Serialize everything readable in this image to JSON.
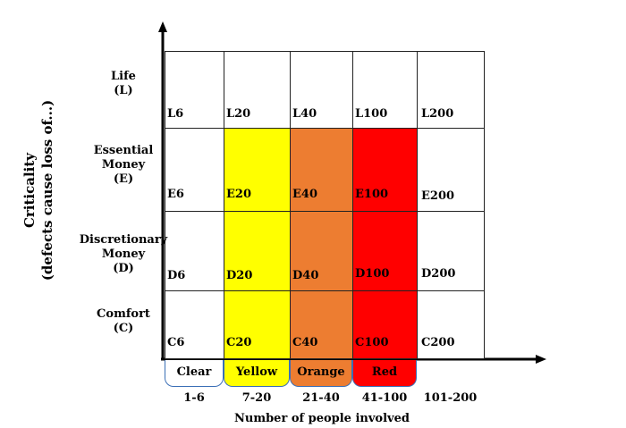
{
  "y_axis": {
    "title_line1": "Criticality",
    "title_line2": "(defects cause loss of...)"
  },
  "x_axis": {
    "title": "Number of people involved"
  },
  "rows": [
    {
      "name": "life",
      "label_lines": [
        "Life",
        "(L)"
      ]
    },
    {
      "name": "essential",
      "label_lines": [
        "Essential",
        "Money",
        "(E)"
      ]
    },
    {
      "name": "discretionary",
      "label_lines": [
        "Discretionary",
        "Money",
        "(D)"
      ]
    },
    {
      "name": "comfort",
      "label_lines": [
        "Comfort",
        "(C)"
      ]
    }
  ],
  "columns": [
    {
      "tab": "Clear",
      "range": "1-6",
      "color": "#ffffff"
    },
    {
      "tab": "Yellow",
      "range": "7-20",
      "color": "#ffff00"
    },
    {
      "tab": "Orange",
      "range": "21-40",
      "color": "#ed7d31"
    },
    {
      "tab": "Red",
      "range": "41-100",
      "color": "#ff0000"
    },
    {
      "tab": "",
      "range": "101-200",
      "color": "#ffffff"
    }
  ],
  "cells": [
    [
      {
        "label": "L6",
        "fill": "#ffffff"
      },
      {
        "label": "L20",
        "fill": "#ffffff"
      },
      {
        "label": "L40",
        "fill": "#ffffff"
      },
      {
        "label": "L100",
        "fill": "#ffffff"
      },
      {
        "label": "L200",
        "fill": "#ffffff"
      }
    ],
    [
      {
        "label": "E6",
        "fill": "#ffffff"
      },
      {
        "label": "E20",
        "fill": "#ffff00"
      },
      {
        "label": "E40",
        "fill": "#ed7d31"
      },
      {
        "label": "E100",
        "fill": "#ff0000"
      },
      {
        "label": "E200",
        "fill": "#ffffff"
      }
    ],
    [
      {
        "label": "D6",
        "fill": "#ffffff"
      },
      {
        "label": "D20",
        "fill": "#ffff00"
      },
      {
        "label": "D40",
        "fill": "#ed7d31"
      },
      {
        "label": "D100",
        "fill": "#ff0000"
      },
      {
        "label": "D200",
        "fill": "#ffffff"
      }
    ],
    [
      {
        "label": "C6",
        "fill": "#ffffff"
      },
      {
        "label": "C20",
        "fill": "#ffff00"
      },
      {
        "label": "C40",
        "fill": "#ed7d31"
      },
      {
        "label": "C100",
        "fill": "#ff0000"
      },
      {
        "label": "C200",
        "fill": "#ffffff"
      }
    ]
  ]
}
